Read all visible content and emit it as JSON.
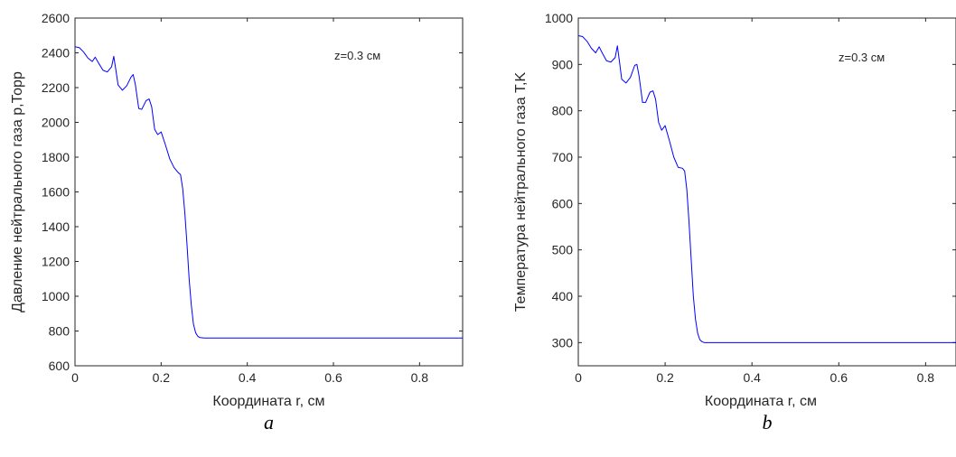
{
  "chart_data": [
    {
      "type": "line",
      "panel_label": "a",
      "xlabel": "Координата r, см",
      "ylabel": "Давление нейтрального газа p,Торр",
      "annotation": "z=0.3 см",
      "xlim": [
        0,
        0.9
      ],
      "ylim": [
        600,
        2600
      ],
      "xticks": [
        "0",
        "0.2",
        "0.4",
        "0.6",
        "0.8"
      ],
      "yticks": [
        "600",
        "800",
        "1000",
        "1200",
        "1400",
        "1600",
        "1800",
        "2000",
        "2200",
        "2400",
        "2600"
      ],
      "line_color": "#0000ff",
      "grid": false,
      "series": [
        {
          "x": [
            0,
            0.01,
            0.02,
            0.03,
            0.04,
            0.047,
            0.055,
            0.065,
            0.075,
            0.085,
            0.09,
            0.095,
            0.1,
            0.11,
            0.12,
            0.13,
            0.135,
            0.14,
            0.148,
            0.155,
            0.165,
            0.172,
            0.178,
            0.185,
            0.192,
            0.2,
            0.21,
            0.22,
            0.23,
            0.24,
            0.245,
            0.25,
            0.255,
            0.26,
            0.265,
            0.27,
            0.275,
            0.28,
            0.285,
            0.29,
            0.3,
            0.4,
            0.5,
            0.6,
            0.7,
            0.8,
            0.9
          ],
          "y": [
            2435,
            2430,
            2405,
            2370,
            2350,
            2375,
            2340,
            2300,
            2290,
            2320,
            2380,
            2300,
            2215,
            2185,
            2210,
            2260,
            2275,
            2220,
            2080,
            2075,
            2125,
            2135,
            2090,
            1960,
            1930,
            1945,
            1870,
            1790,
            1740,
            1710,
            1700,
            1620,
            1480,
            1300,
            1100,
            950,
            840,
            790,
            770,
            762,
            760,
            760,
            760,
            760,
            760,
            760,
            760
          ]
        }
      ]
    },
    {
      "type": "line",
      "panel_label": "b",
      "xlabel": "Координата r, см",
      "ylabel": "Температура нейтрального газа T,K",
      "annotation": "z=0.3 см",
      "xlim": [
        0,
        0.87
      ],
      "ylim": [
        250,
        1000
      ],
      "xticks": [
        "0",
        "0.2",
        "0.4",
        "0.6",
        "0.8"
      ],
      "yticks": [
        "300",
        "400",
        "500",
        "600",
        "700",
        "800",
        "900",
        "1000"
      ],
      "line_color": "#0000ff",
      "grid": false,
      "series": [
        {
          "x": [
            0,
            0.01,
            0.02,
            0.03,
            0.04,
            0.048,
            0.055,
            0.065,
            0.075,
            0.085,
            0.09,
            0.095,
            0.1,
            0.11,
            0.12,
            0.13,
            0.135,
            0.14,
            0.148,
            0.155,
            0.165,
            0.172,
            0.178,
            0.185,
            0.192,
            0.2,
            0.21,
            0.22,
            0.23,
            0.24,
            0.245,
            0.25,
            0.255,
            0.26,
            0.265,
            0.27,
            0.275,
            0.28,
            0.285,
            0.29,
            0.3,
            0.4,
            0.5,
            0.6,
            0.7,
            0.8,
            0.87
          ],
          "y": [
            962,
            960,
            950,
            935,
            925,
            938,
            925,
            908,
            905,
            915,
            940,
            905,
            868,
            860,
            872,
            898,
            900,
            875,
            818,
            818,
            840,
            843,
            825,
            775,
            758,
            768,
            735,
            700,
            678,
            676,
            670,
            630,
            560,
            480,
            400,
            350,
            320,
            306,
            302,
            300,
            300,
            300,
            300,
            300,
            300,
            300,
            300
          ]
        }
      ]
    }
  ]
}
